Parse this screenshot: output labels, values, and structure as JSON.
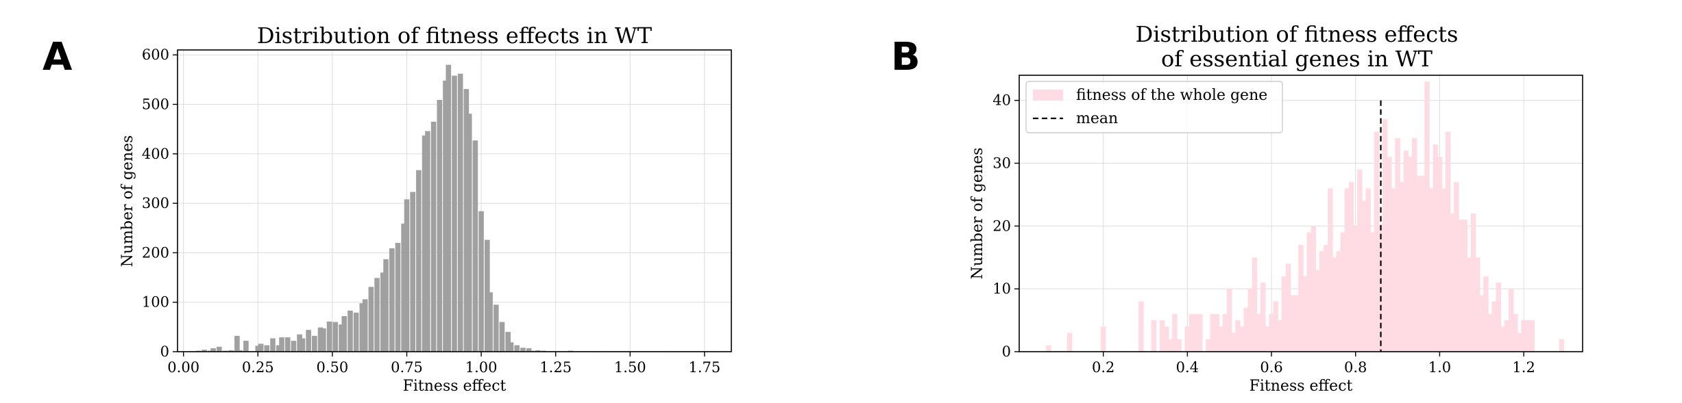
{
  "chart_data": [
    {
      "panel": "A",
      "type": "bar",
      "title": "Distribution of fitness effects in WT",
      "xlabel": "Fitness effect",
      "ylabel": "Number of genes",
      "xlim": [
        -0.02,
        1.84
      ],
      "ylim": [
        0,
        610
      ],
      "xticks": [
        0.0,
        0.25,
        0.5,
        0.75,
        1.0,
        1.25,
        1.5,
        1.75
      ],
      "xtick_labels": [
        "0.00",
        "0.25",
        "0.50",
        "0.75",
        "1.00",
        "1.25",
        "1.50",
        "1.75"
      ],
      "yticks": [
        0,
        100,
        200,
        300,
        400,
        500,
        600
      ],
      "ytick_labels": [
        "0",
        "100",
        "200",
        "300",
        "400",
        "500",
        "600"
      ],
      "grid": true,
      "bar_color": "#a0a0a0",
      "bin_width": 0.0175,
      "series": [
        {
          "x": [
            0.03,
            0.05,
            0.07,
            0.09,
            0.1,
            0.12,
            0.14,
            0.16,
            0.18,
            0.19,
            0.21,
            0.23,
            0.25,
            0.26,
            0.28,
            0.3,
            0.32,
            0.33,
            0.35,
            0.37,
            0.39,
            0.4,
            0.42,
            0.44,
            0.46,
            0.47,
            0.49,
            0.51,
            0.53,
            0.54,
            0.56,
            0.58,
            0.6,
            0.61,
            0.63,
            0.65,
            0.67,
            0.68,
            0.7,
            0.72,
            0.74,
            0.75,
            0.77,
            0.79,
            0.81,
            0.82,
            0.84,
            0.86,
            0.88,
            0.89,
            0.91,
            0.93,
            0.95,
            0.96,
            0.98,
            1.0,
            1.02,
            1.03,
            1.05,
            1.07,
            1.09,
            1.1,
            1.12,
            1.14,
            1.16,
            1.17,
            1.19,
            1.21,
            1.23,
            1.24,
            1.26,
            1.28,
            1.3,
            1.31,
            1.33,
            1.35,
            1.37,
            1.38,
            1.4,
            1.42,
            1.44,
            1.45,
            1.47,
            1.49,
            1.51,
            1.52,
            1.54,
            1.56,
            1.58,
            1.6,
            1.62,
            1.64,
            1.66,
            1.68,
            1.7,
            1.72,
            1.74,
            1.76,
            1.78
          ],
          "values": [
            1,
            2,
            4,
            2,
            7,
            10,
            2,
            3,
            32,
            3,
            22,
            1,
            12,
            16,
            13,
            27,
            13,
            29,
            29,
            22,
            35,
            27,
            44,
            32,
            49,
            47,
            61,
            60,
            55,
            72,
            83,
            79,
            98,
            106,
            131,
            149,
            160,
            187,
            209,
            220,
            259,
            308,
            323,
            367,
            437,
            446,
            465,
            509,
            548,
            580,
            558,
            562,
            531,
            481,
            427,
            284,
            226,
            120,
            95,
            60,
            40,
            19,
            13,
            8,
            7,
            2,
            3,
            2,
            1,
            1,
            1,
            1,
            2,
            1,
            1,
            1,
            1,
            1,
            1,
            1,
            1,
            1,
            1,
            1,
            1,
            1,
            1,
            1,
            1,
            1,
            1,
            1,
            1,
            1,
            1,
            1,
            1,
            1,
            1
          ]
        }
      ]
    },
    {
      "panel": "B",
      "type": "bar",
      "title": "Distribution of fitness effects",
      "title_line2": "of essential genes in WT",
      "xlabel": "Fitness effect",
      "ylabel": "Number of genes",
      "xlim": [
        0.0,
        1.34
      ],
      "ylim": [
        0,
        44
      ],
      "xticks": [
        0.2,
        0.4,
        0.6,
        0.8,
        1.0,
        1.2
      ],
      "xtick_labels": [
        "0.2",
        "0.4",
        "0.6",
        "0.8",
        "1.0",
        "1.2"
      ],
      "yticks": [
        0,
        10,
        20,
        30,
        40
      ],
      "ytick_labels": [
        "0",
        "10",
        "20",
        "30",
        "40"
      ],
      "grid": true,
      "bar_color": "#ffdbe3",
      "bin_width": 0.0123,
      "legend_position": "top-left",
      "series": [
        {
          "name": "fitness of the whole gene",
          "x": [
            0.07,
            0.12,
            0.2,
            0.29,
            0.32,
            0.34,
            0.35,
            0.36,
            0.37,
            0.38,
            0.4,
            0.41,
            0.42,
            0.43,
            0.45,
            0.46,
            0.47,
            0.48,
            0.49,
            0.5,
            0.51,
            0.52,
            0.53,
            0.54,
            0.55,
            0.56,
            0.57,
            0.58,
            0.59,
            0.6,
            0.61,
            0.62,
            0.63,
            0.64,
            0.65,
            0.66,
            0.67,
            0.68,
            0.69,
            0.7,
            0.71,
            0.72,
            0.73,
            0.74,
            0.75,
            0.76,
            0.77,
            0.78,
            0.79,
            0.8,
            0.81,
            0.82,
            0.83,
            0.84,
            0.85,
            0.86,
            0.87,
            0.88,
            0.89,
            0.9,
            0.91,
            0.92,
            0.93,
            0.94,
            0.95,
            0.96,
            0.97,
            0.98,
            0.99,
            1.0,
            1.01,
            1.02,
            1.03,
            1.04,
            1.05,
            1.06,
            1.07,
            1.08,
            1.09,
            1.1,
            1.11,
            1.12,
            1.13,
            1.14,
            1.15,
            1.16,
            1.17,
            1.18,
            1.19,
            1.2,
            1.21,
            1.22,
            1.29
          ],
          "values": [
            1,
            3,
            4,
            8,
            5,
            5,
            4,
            2,
            6,
            2,
            4,
            6,
            6,
            6,
            2,
            6,
            6,
            4,
            6,
            10,
            3,
            5,
            4,
            7,
            10,
            15,
            6,
            11,
            4,
            6,
            8,
            5,
            12,
            14,
            9,
            9,
            17,
            12,
            19,
            20,
            13,
            16,
            17,
            26,
            15,
            16,
            19,
            26,
            27,
            20,
            29,
            24,
            26,
            19,
            35,
            20,
            37,
            31,
            26,
            34,
            27,
            32,
            31,
            34,
            28,
            28,
            43,
            26,
            33,
            31,
            26,
            35,
            22,
            27,
            21,
            21,
            15,
            22,
            15,
            9,
            12,
            6,
            8,
            11,
            4,
            5,
            10,
            6,
            3,
            5,
            5,
            5,
            2
          ]
        }
      ],
      "mean_line": {
        "name": "mean",
        "x": 0.86,
        "y_top": 40,
        "style": "dashed",
        "color": "#000000"
      }
    }
  ]
}
